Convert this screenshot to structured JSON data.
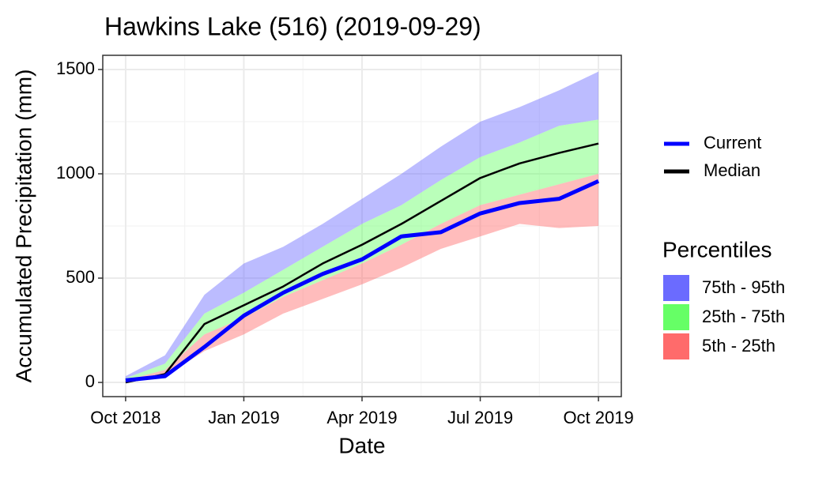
{
  "chart_data": {
    "type": "ribbon-line",
    "title": "Hawkins Lake (516) (2019-09-29)",
    "x_label": "Date",
    "y_label": "Accumulated Precipitation (mm)",
    "x": [
      "2018-10",
      "2018-11",
      "2018-12",
      "2019-01",
      "2019-02",
      "2019-03",
      "2019-04",
      "2019-05",
      "2019-06",
      "2019-07",
      "2019-08",
      "2019-09",
      "2019-10"
    ],
    "xticks": [
      {
        "value": "2018-10",
        "label": "Oct 2018"
      },
      {
        "value": "2019-01",
        "label": "Jan 2019"
      },
      {
        "value": "2019-04",
        "label": "Apr 2019"
      },
      {
        "value": "2019-07",
        "label": "Jul 2019"
      },
      {
        "value": "2019-10",
        "label": "Oct 2019"
      }
    ],
    "ylim": [
      -68,
      1568
    ],
    "yticks": [
      0,
      500,
      1000,
      1500
    ],
    "grid": true,
    "bands_title": "Percentiles",
    "bands": [
      {
        "name": "75th - 95th",
        "color": "#6b6bff",
        "lower": [
          20,
          90,
          330,
          430,
          540,
          650,
          760,
          850,
          970,
          1080,
          1150,
          1230,
          1260
        ],
        "upper": [
          30,
          130,
          420,
          570,
          650,
          760,
          880,
          1000,
          1130,
          1250,
          1320,
          1400,
          1490
        ]
      },
      {
        "name": "25th - 75th",
        "color": "#66ff66",
        "lower": [
          10,
          60,
          230,
          310,
          410,
          490,
          570,
          660,
          760,
          850,
          900,
          950,
          1000
        ],
        "upper": [
          20,
          90,
          330,
          430,
          540,
          650,
          760,
          850,
          970,
          1080,
          1150,
          1230,
          1260
        ]
      },
      {
        "name": "5th - 25th",
        "color": "#ff6b6b",
        "lower": [
          0,
          30,
          150,
          230,
          330,
          400,
          470,
          550,
          640,
          700,
          760,
          740,
          750
        ],
        "upper": [
          10,
          60,
          230,
          310,
          410,
          490,
          570,
          660,
          760,
          850,
          900,
          950,
          1000
        ]
      }
    ],
    "series": [
      {
        "name": "Current",
        "color": "#0000ff",
        "values": [
          10,
          30,
          170,
          320,
          430,
          520,
          590,
          700,
          720,
          810,
          860,
          880,
          965
        ]
      },
      {
        "name": "Median",
        "color": "#000000",
        "values": [
          0,
          40,
          280,
          370,
          460,
          570,
          660,
          760,
          870,
          980,
          1050,
          1100,
          1145
        ]
      }
    ]
  }
}
